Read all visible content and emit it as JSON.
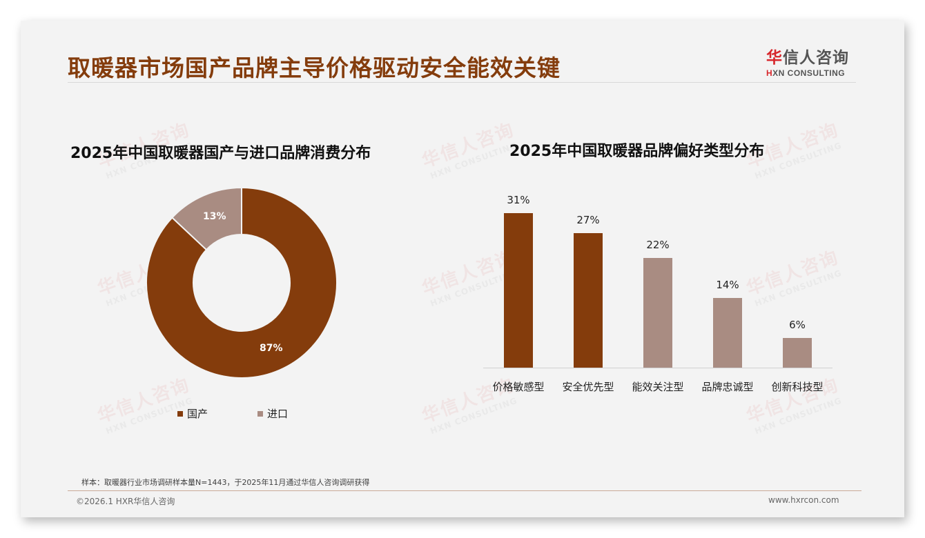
{
  "header": {
    "title": "取暖器市场国产品牌主导价格驱动安全能效关键",
    "logo_cn_first": "华",
    "logo_cn_rest": "信人咨询",
    "logo_en_first": "H",
    "logo_en_rest": "XN CONSULTING"
  },
  "watermark": {
    "cn": "华信人咨询",
    "en": "HXN CONSULTING"
  },
  "colors": {
    "title": "#843c0c",
    "primary": "#843c0c",
    "secondary": "#a98c82",
    "logo_red": "#d7262b"
  },
  "left_chart": {
    "title": "2025年中国取暖器国产与进口品牌消费分布",
    "legend": [
      {
        "label": "国产",
        "color": "#843c0c"
      },
      {
        "label": "进口",
        "color": "#a98c82"
      }
    ],
    "labels": [
      "87%",
      "13%"
    ]
  },
  "right_chart": {
    "title": "2025年中国取暖器品牌偏好类型分布",
    "bars": [
      {
        "label": "价格敏感型",
        "value_text": "31%",
        "value": 31,
        "color": "#843c0c"
      },
      {
        "label": "安全优先型",
        "value_text": "27%",
        "value": 27,
        "color": "#843c0c"
      },
      {
        "label": "能效关注型",
        "value_text": "22%",
        "value": 22,
        "color": "#a98c82"
      },
      {
        "label": "品牌忠诚型",
        "value_text": "14%",
        "value": 14,
        "color": "#a98c82"
      },
      {
        "label": "创新科技型",
        "value_text": "6%",
        "value": 6,
        "color": "#a98c82"
      }
    ]
  },
  "chart_data": [
    {
      "type": "pie",
      "variant": "donut",
      "title": "2025年中国取暖器国产与进口品牌消费分布",
      "categories": [
        "国产",
        "进口"
      ],
      "values": [
        87,
        13
      ],
      "unit": "%",
      "colors": [
        "#843c0c",
        "#a98c82"
      ],
      "legend_position": "bottom",
      "data_labels": [
        "87%",
        "13%"
      ]
    },
    {
      "type": "bar",
      "title": "2025年中国取暖器品牌偏好类型分布",
      "categories": [
        "价格敏感型",
        "安全优先型",
        "能效关注型",
        "品牌忠诚型",
        "创新科技型"
      ],
      "values": [
        31,
        27,
        22,
        14,
        6
      ],
      "unit": "%",
      "colors": [
        "#843c0c",
        "#843c0c",
        "#a98c82",
        "#a98c82",
        "#a98c82"
      ],
      "xlabel": "",
      "ylabel": "",
      "grid": false,
      "data_labels": [
        "31%",
        "27%",
        "22%",
        "14%",
        "6%"
      ]
    }
  ],
  "footer": {
    "note": "样本：取暖器行业市场调研样本量N=1443，于2025年11月通过华信人咨询调研获得",
    "copyright": "©2026.1 HXR华信人咨询",
    "website": "www.hxrcon.com"
  }
}
